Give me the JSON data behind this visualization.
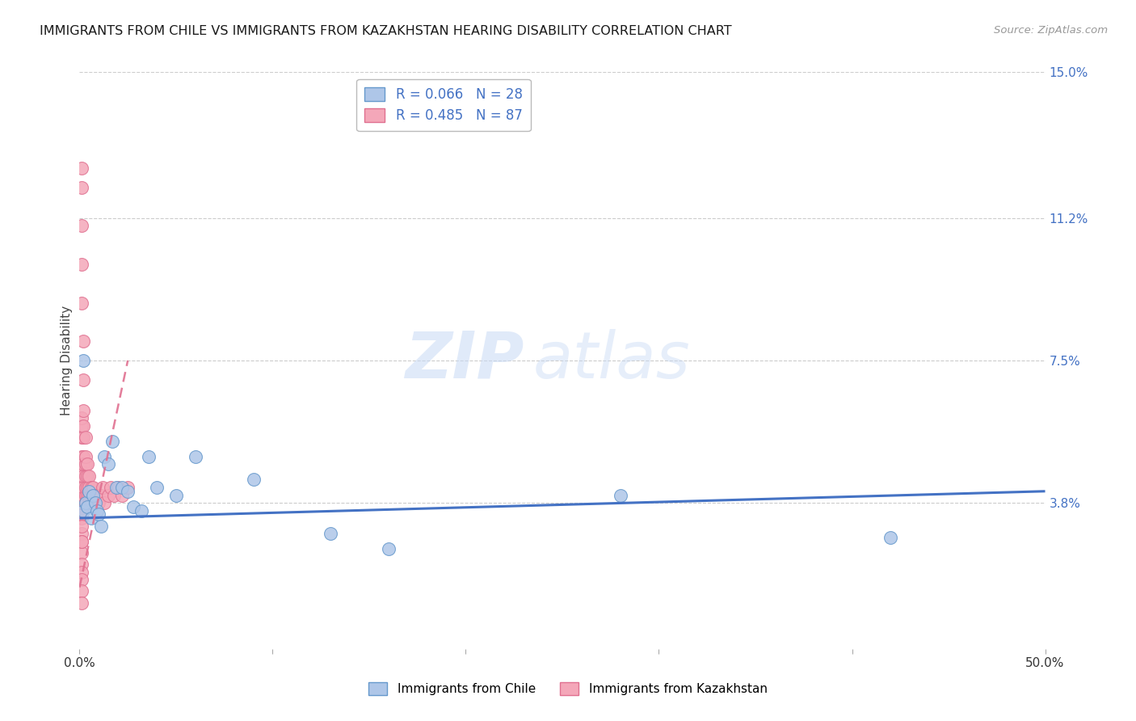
{
  "title": "IMMIGRANTS FROM CHILE VS IMMIGRANTS FROM KAZAKHSTAN HEARING DISABILITY CORRELATION CHART",
  "source": "Source: ZipAtlas.com",
  "ylabel": "Hearing Disability",
  "xlim": [
    0.0,
    0.5
  ],
  "ylim": [
    0.0,
    0.15
  ],
  "xticks": [
    0.0,
    0.1,
    0.2,
    0.3,
    0.4,
    0.5
  ],
  "xtick_labels": [
    "0.0%",
    "",
    "",
    "",
    "",
    "50.0%"
  ],
  "yticks": [
    0.0,
    0.038,
    0.075,
    0.112,
    0.15
  ],
  "ytick_labels": [
    "",
    "3.8%",
    "7.5%",
    "11.2%",
    "15.0%"
  ],
  "watermark_zip": "ZIP",
  "watermark_atlas": "atlas",
  "chile_color": "#aec6e8",
  "chile_edge_color": "#6699cc",
  "kazakhstan_color": "#f4a7b9",
  "kazakhstan_edge_color": "#e07090",
  "chile_line_color": "#4472C4",
  "kazakhstan_line_color": "#e07090",
  "R_chile": 0.066,
  "N_chile": 28,
  "R_kazakhstan": 0.485,
  "N_kazakhstan": 87,
  "legend_label_chile": "Immigrants from Chile",
  "legend_label_kazakhstan": "Immigrants from Kazakhstan",
  "chile_x": [
    0.002,
    0.003,
    0.004,
    0.005,
    0.006,
    0.007,
    0.008,
    0.009,
    0.01,
    0.011,
    0.013,
    0.015,
    0.017,
    0.019,
    0.022,
    0.025,
    0.028,
    0.032,
    0.036,
    0.04,
    0.05,
    0.06,
    0.09,
    0.13,
    0.16,
    0.28,
    0.42,
    0.002
  ],
  "chile_y": [
    0.036,
    0.038,
    0.037,
    0.041,
    0.034,
    0.04,
    0.038,
    0.036,
    0.035,
    0.032,
    0.05,
    0.048,
    0.054,
    0.042,
    0.042,
    0.041,
    0.037,
    0.036,
    0.05,
    0.042,
    0.04,
    0.05,
    0.044,
    0.03,
    0.026,
    0.04,
    0.029,
    0.075
  ],
  "kazakhstan_x": [
    0.001,
    0.001,
    0.001,
    0.001,
    0.001,
    0.001,
    0.001,
    0.001,
    0.001,
    0.001,
    0.001,
    0.001,
    0.001,
    0.001,
    0.001,
    0.001,
    0.001,
    0.001,
    0.001,
    0.001,
    0.001,
    0.001,
    0.001,
    0.001,
    0.001,
    0.001,
    0.001,
    0.001,
    0.001,
    0.001,
    0.002,
    0.002,
    0.002,
    0.002,
    0.002,
    0.002,
    0.002,
    0.002,
    0.002,
    0.002,
    0.002,
    0.002,
    0.002,
    0.002,
    0.002,
    0.003,
    0.003,
    0.003,
    0.003,
    0.003,
    0.003,
    0.003,
    0.003,
    0.004,
    0.004,
    0.004,
    0.004,
    0.005,
    0.005,
    0.005,
    0.005,
    0.006,
    0.006,
    0.006,
    0.007,
    0.007,
    0.008,
    0.008,
    0.009,
    0.009,
    0.01,
    0.011,
    0.012,
    0.013,
    0.015,
    0.016,
    0.018,
    0.02,
    0.022,
    0.025,
    0.002,
    0.002,
    0.001,
    0.001,
    0.001,
    0.001,
    0.001
  ],
  "kazakhstan_y": [
    0.038,
    0.036,
    0.034,
    0.04,
    0.03,
    0.025,
    0.022,
    0.028,
    0.02,
    0.038,
    0.042,
    0.046,
    0.05,
    0.055,
    0.058,
    0.06,
    0.035,
    0.032,
    0.028,
    0.018,
    0.015,
    0.012,
    0.038,
    0.038,
    0.038,
    0.038,
    0.038,
    0.038,
    0.038,
    0.038,
    0.038,
    0.04,
    0.042,
    0.046,
    0.05,
    0.055,
    0.058,
    0.062,
    0.038,
    0.038,
    0.038,
    0.04,
    0.042,
    0.045,
    0.048,
    0.04,
    0.042,
    0.045,
    0.048,
    0.05,
    0.055,
    0.038,
    0.038,
    0.04,
    0.042,
    0.045,
    0.048,
    0.04,
    0.042,
    0.045,
    0.038,
    0.04,
    0.042,
    0.038,
    0.04,
    0.042,
    0.038,
    0.04,
    0.038,
    0.04,
    0.038,
    0.04,
    0.042,
    0.038,
    0.04,
    0.042,
    0.04,
    0.042,
    0.04,
    0.042,
    0.07,
    0.08,
    0.09,
    0.1,
    0.11,
    0.12,
    0.125
  ],
  "kaz_line_x0": 0.0,
  "kaz_line_y0": 0.016,
  "kaz_line_x1": 0.025,
  "kaz_line_y1": 0.075,
  "chile_line_x0": 0.0,
  "chile_line_y0": 0.034,
  "chile_line_x1": 0.5,
  "chile_line_y1": 0.041
}
